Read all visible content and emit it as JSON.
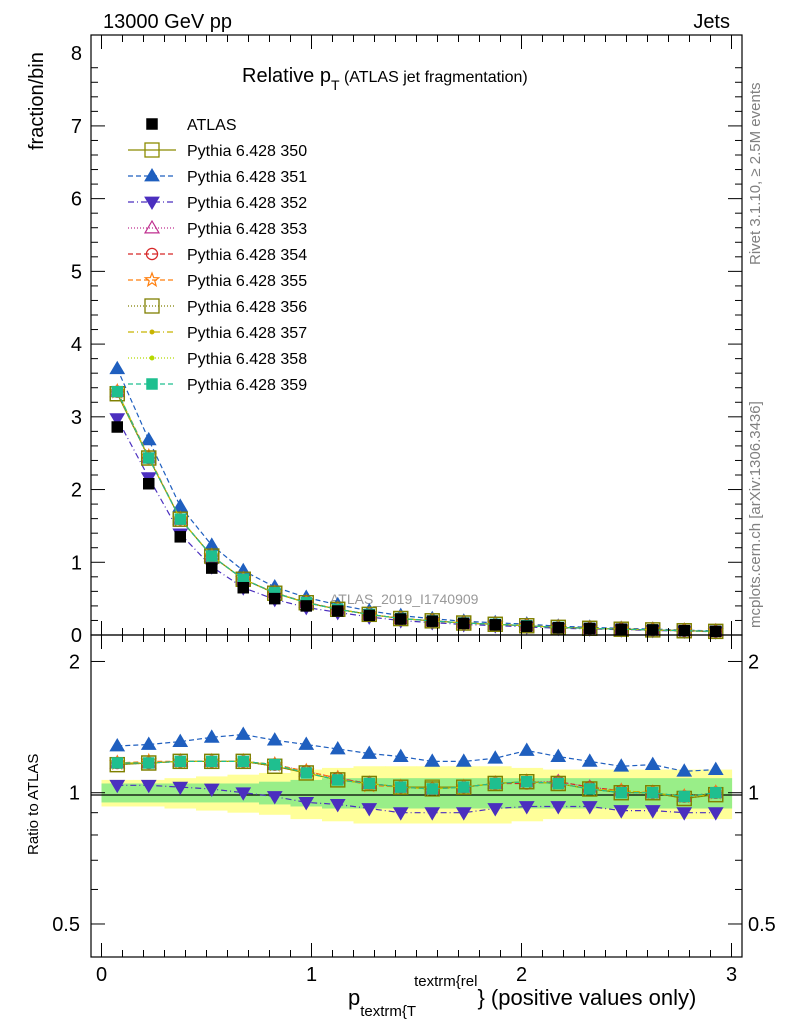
{
  "header": {
    "beam_label": "13000 GeV pp",
    "process_label": "Jets",
    "title_main": "Relative p",
    "title_sub": "T",
    "title_rest": " (ATLAS jet fragmentation)",
    "side_label_rivet": "Rivet 3.1.10, ≥ 2.5M events",
    "side_label_mcplots": "mcplots.cern.ch [arXiv:1306.3436]",
    "watermark": "ATLAS_2019_I1740909"
  },
  "axes": {
    "ylabel_main": "fraction/bin",
    "ylabel_ratio": "Ratio to ATLAS",
    "xlabel_p": "p",
    "xlabel_sub": "textrm{T",
    "xlabel_sup": "textrm{rel",
    "xlabel_rest": "} (positive values only)",
    "main_yticks": [
      "0",
      "1",
      "2",
      "3",
      "4",
      "5",
      "6",
      "7",
      "8"
    ],
    "ratio_yticks": [
      "0.5",
      "1",
      "2"
    ],
    "xticks": [
      "0",
      "1",
      "2",
      "3"
    ]
  },
  "chart_data": {
    "type": "line",
    "x": [
      0.075,
      0.225,
      0.375,
      0.525,
      0.675,
      0.825,
      0.975,
      1.125,
      1.275,
      1.425,
      1.575,
      1.725,
      1.875,
      2.025,
      2.175,
      2.325,
      2.475,
      2.625,
      2.775,
      2.925
    ],
    "xlim": [
      -0.05,
      3.05
    ],
    "main_ylim": [
      0,
      8.25
    ],
    "ratio_ylim": [
      0.42,
      2.3
    ],
    "ratio_scale": "log",
    "grid": false,
    "legend_position": "top-left",
    "data": {
      "name": "ATLAS",
      "values": [
        2.86,
        2.08,
        1.35,
        0.92,
        0.65,
        0.5,
        0.4,
        0.33,
        0.27,
        0.22,
        0.19,
        0.16,
        0.14,
        0.12,
        0.1,
        0.09,
        0.08,
        0.07,
        0.06,
        0.05
      ],
      "band_inner": [
        0.05,
        0.05,
        0.05,
        0.05,
        0.05,
        0.06,
        0.07,
        0.08,
        0.08,
        0.08,
        0.08,
        0.08,
        0.08,
        0.08,
        0.08,
        0.08,
        0.08,
        0.08,
        0.08,
        0.08
      ],
      "band_outer": [
        0.07,
        0.07,
        0.08,
        0.09,
        0.1,
        0.11,
        0.13,
        0.14,
        0.15,
        0.15,
        0.15,
        0.15,
        0.15,
        0.14,
        0.13,
        0.13,
        0.13,
        0.13,
        0.13,
        0.13
      ]
    },
    "series": [
      {
        "name": "Pythia 6.428 350",
        "color": "#8b8b00",
        "marker": "open-square",
        "dash": "",
        "ratio": [
          1.16,
          1.17,
          1.18,
          1.18,
          1.18,
          1.15,
          1.11,
          1.07,
          1.05,
          1.03,
          1.03,
          1.03,
          1.05,
          1.06,
          1.05,
          1.02,
          1.0,
          1.0,
          0.97,
          0.99
        ]
      },
      {
        "name": "Pythia 6.428 351",
        "color": "#1f5fbf",
        "marker": "filled-triangle-up",
        "dash": "5,3",
        "ratio": [
          1.28,
          1.29,
          1.31,
          1.34,
          1.36,
          1.32,
          1.29,
          1.26,
          1.23,
          1.21,
          1.18,
          1.18,
          1.2,
          1.25,
          1.21,
          1.18,
          1.15,
          1.16,
          1.12,
          1.13
        ]
      },
      {
        "name": "Pythia 6.428 352",
        "color": "#4b2fbf",
        "marker": "filled-triangle-down",
        "dash": "6,3,1,3",
        "ratio": [
          1.04,
          1.04,
          1.03,
          1.02,
          1.0,
          0.98,
          0.95,
          0.94,
          0.92,
          0.9,
          0.9,
          0.9,
          0.92,
          0.93,
          0.93,
          0.93,
          0.91,
          0.91,
          0.9,
          0.9
        ]
      },
      {
        "name": "Pythia 6.428 353",
        "color": "#bf2f8f",
        "marker": "open-triangle-up",
        "dash": "1,2",
        "ratio": [
          1.17,
          1.17,
          1.18,
          1.18,
          1.18,
          1.16,
          1.12,
          1.08,
          1.05,
          1.03,
          1.02,
          1.03,
          1.05,
          1.06,
          1.06,
          1.03,
          1.01,
          1.0,
          0.98,
          1.0
        ]
      },
      {
        "name": "Pythia 6.428 354",
        "color": "#d62728",
        "marker": "open-circle",
        "dash": "5,3",
        "ratio": [
          1.17,
          1.17,
          1.18,
          1.18,
          1.18,
          1.16,
          1.12,
          1.08,
          1.05,
          1.03,
          1.02,
          1.03,
          1.05,
          1.05,
          1.06,
          1.03,
          1.01,
          1.0,
          0.98,
          1.0
        ]
      },
      {
        "name": "Pythia 6.428 355",
        "color": "#ff7f0e",
        "marker": "open-star",
        "dash": "5,3",
        "ratio": [
          1.17,
          1.18,
          1.18,
          1.18,
          1.18,
          1.16,
          1.12,
          1.08,
          1.04,
          1.03,
          1.02,
          1.03,
          1.05,
          1.06,
          1.05,
          1.02,
          1.01,
          1.0,
          0.98,
          1.0
        ]
      },
      {
        "name": "Pythia 6.428 356",
        "color": "#7f7f00",
        "marker": "open-square",
        "dash": "1,2",
        "ratio": [
          1.16,
          1.17,
          1.18,
          1.18,
          1.18,
          1.15,
          1.11,
          1.07,
          1.05,
          1.03,
          1.02,
          1.03,
          1.05,
          1.06,
          1.05,
          1.02,
          1.0,
          1.0,
          0.97,
          0.99
        ]
      },
      {
        "name": "Pythia 6.428 357",
        "color": "#c8b400",
        "marker": "small-dot",
        "dash": "6,3,1,3",
        "ratio": [
          1.17,
          1.17,
          1.18,
          1.18,
          1.18,
          1.16,
          1.11,
          1.07,
          1.05,
          1.03,
          1.02,
          1.03,
          1.05,
          1.06,
          1.05,
          1.02,
          1.01,
          1.0,
          0.98,
          0.99
        ]
      },
      {
        "name": "Pythia 6.428 358",
        "color": "#b5d900",
        "marker": "small-dot",
        "dash": "1,2",
        "ratio": [
          1.17,
          1.17,
          1.18,
          1.18,
          1.18,
          1.16,
          1.11,
          1.07,
          1.05,
          1.03,
          1.02,
          1.03,
          1.05,
          1.06,
          1.05,
          1.02,
          1.01,
          1.0,
          0.98,
          1.0
        ]
      },
      {
        "name": "Pythia 6.428 359",
        "color": "#1fbf8f",
        "marker": "filled-square",
        "dash": "5,3",
        "ratio": [
          1.17,
          1.17,
          1.18,
          1.18,
          1.18,
          1.16,
          1.11,
          1.07,
          1.05,
          1.03,
          1.02,
          1.03,
          1.05,
          1.06,
          1.05,
          1.02,
          1.0,
          1.0,
          0.98,
          1.0
        ]
      }
    ]
  }
}
